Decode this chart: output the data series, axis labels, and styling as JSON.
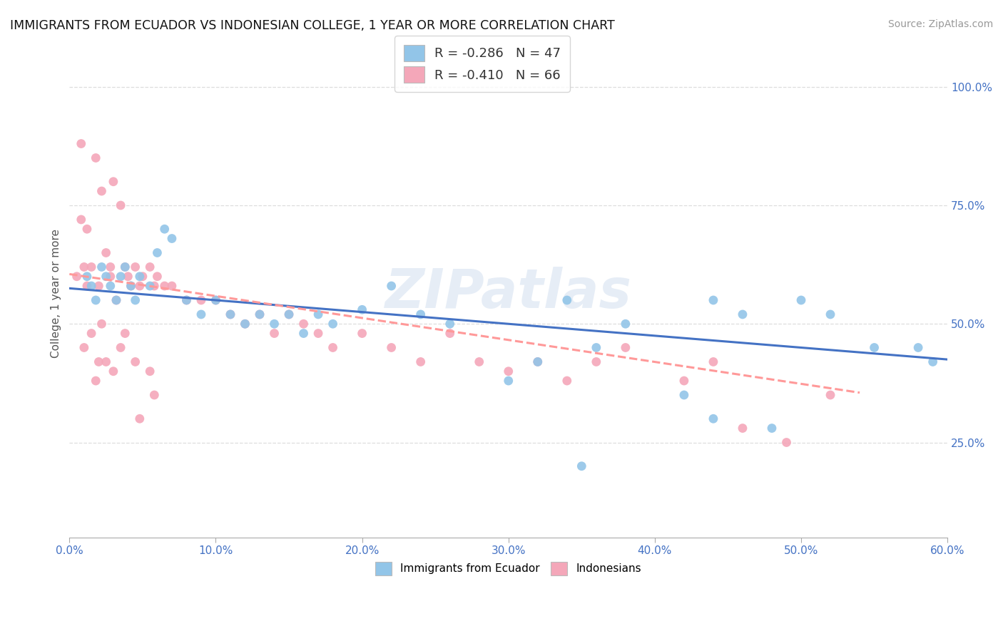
{
  "title": "IMMIGRANTS FROM ECUADOR VS INDONESIAN COLLEGE, 1 YEAR OR MORE CORRELATION CHART",
  "source": "Source: ZipAtlas.com",
  "ylabel": "College, 1 year or more",
  "legend_entry1": "R = -0.286   N = 47",
  "legend_entry2": "R = -0.410   N = 66",
  "blue_label": "Immigrants from Ecuador",
  "pink_label": "Indonesians",
  "xmin": 0.0,
  "xmax": 0.6,
  "ymin": 0.05,
  "ymax": 1.08,
  "blue_color": "#92C5E8",
  "pink_color": "#F4A7B9",
  "blue_line_color": "#4472C4",
  "pink_line_color": "#FF9999",
  "right_ytick_vals": [
    0.25,
    0.5,
    0.75,
    1.0
  ],
  "right_ytick_labels": [
    "25.0%",
    "50.0%",
    "75.0%",
    "100.0%"
  ],
  "watermark": "ZIPatlas",
  "blue_trend_x0": 0.0,
  "blue_trend_x1": 0.6,
  "blue_trend_y0": 0.575,
  "blue_trend_y1": 0.425,
  "pink_trend_x0": 0.0,
  "pink_trend_x1": 0.54,
  "pink_trend_y0": 0.605,
  "pink_trend_y1": 0.355,
  "scatter_blue_x": [
    0.012,
    0.015,
    0.018,
    0.022,
    0.025,
    0.028,
    0.032,
    0.035,
    0.038,
    0.042,
    0.045,
    0.048,
    0.055,
    0.06,
    0.065,
    0.07,
    0.08,
    0.09,
    0.1,
    0.11,
    0.12,
    0.13,
    0.14,
    0.15,
    0.16,
    0.17,
    0.18,
    0.2,
    0.22,
    0.24,
    0.26,
    0.3,
    0.32,
    0.34,
    0.36,
    0.38,
    0.42,
    0.44,
    0.46,
    0.5,
    0.52,
    0.55,
    0.58,
    0.59,
    0.44,
    0.35,
    0.48
  ],
  "scatter_blue_y": [
    0.6,
    0.58,
    0.55,
    0.62,
    0.6,
    0.58,
    0.55,
    0.6,
    0.62,
    0.58,
    0.55,
    0.6,
    0.58,
    0.65,
    0.7,
    0.68,
    0.55,
    0.52,
    0.55,
    0.52,
    0.5,
    0.52,
    0.5,
    0.52,
    0.48,
    0.52,
    0.5,
    0.53,
    0.58,
    0.52,
    0.5,
    0.38,
    0.42,
    0.55,
    0.45,
    0.5,
    0.35,
    0.55,
    0.52,
    0.55,
    0.52,
    0.45,
    0.45,
    0.42,
    0.3,
    0.2,
    0.28
  ],
  "scatter_pink_x": [
    0.005,
    0.008,
    0.01,
    0.012,
    0.015,
    0.018,
    0.02,
    0.022,
    0.025,
    0.028,
    0.03,
    0.032,
    0.035,
    0.038,
    0.04,
    0.042,
    0.045,
    0.048,
    0.05,
    0.055,
    0.058,
    0.06,
    0.065,
    0.07,
    0.08,
    0.09,
    0.1,
    0.11,
    0.12,
    0.13,
    0.14,
    0.15,
    0.16,
    0.17,
    0.18,
    0.2,
    0.22,
    0.24,
    0.26,
    0.28,
    0.3,
    0.32,
    0.34,
    0.36,
    0.38,
    0.42,
    0.44,
    0.46,
    0.49,
    0.52,
    0.01,
    0.02,
    0.03,
    0.015,
    0.008,
    0.025,
    0.018,
    0.012,
    0.022,
    0.035,
    0.045,
    0.055,
    0.028,
    0.038,
    0.048,
    0.058
  ],
  "scatter_pink_y": [
    0.6,
    0.88,
    0.62,
    0.7,
    0.62,
    0.85,
    0.58,
    0.78,
    0.65,
    0.6,
    0.8,
    0.55,
    0.75,
    0.62,
    0.6,
    0.58,
    0.62,
    0.58,
    0.6,
    0.62,
    0.58,
    0.6,
    0.58,
    0.58,
    0.55,
    0.55,
    0.55,
    0.52,
    0.5,
    0.52,
    0.48,
    0.52,
    0.5,
    0.48,
    0.45,
    0.48,
    0.45,
    0.42,
    0.48,
    0.42,
    0.4,
    0.42,
    0.38,
    0.42,
    0.45,
    0.38,
    0.42,
    0.28,
    0.25,
    0.35,
    0.45,
    0.42,
    0.4,
    0.48,
    0.72,
    0.42,
    0.38,
    0.58,
    0.5,
    0.45,
    0.42,
    0.4,
    0.62,
    0.48,
    0.3,
    0.35
  ]
}
